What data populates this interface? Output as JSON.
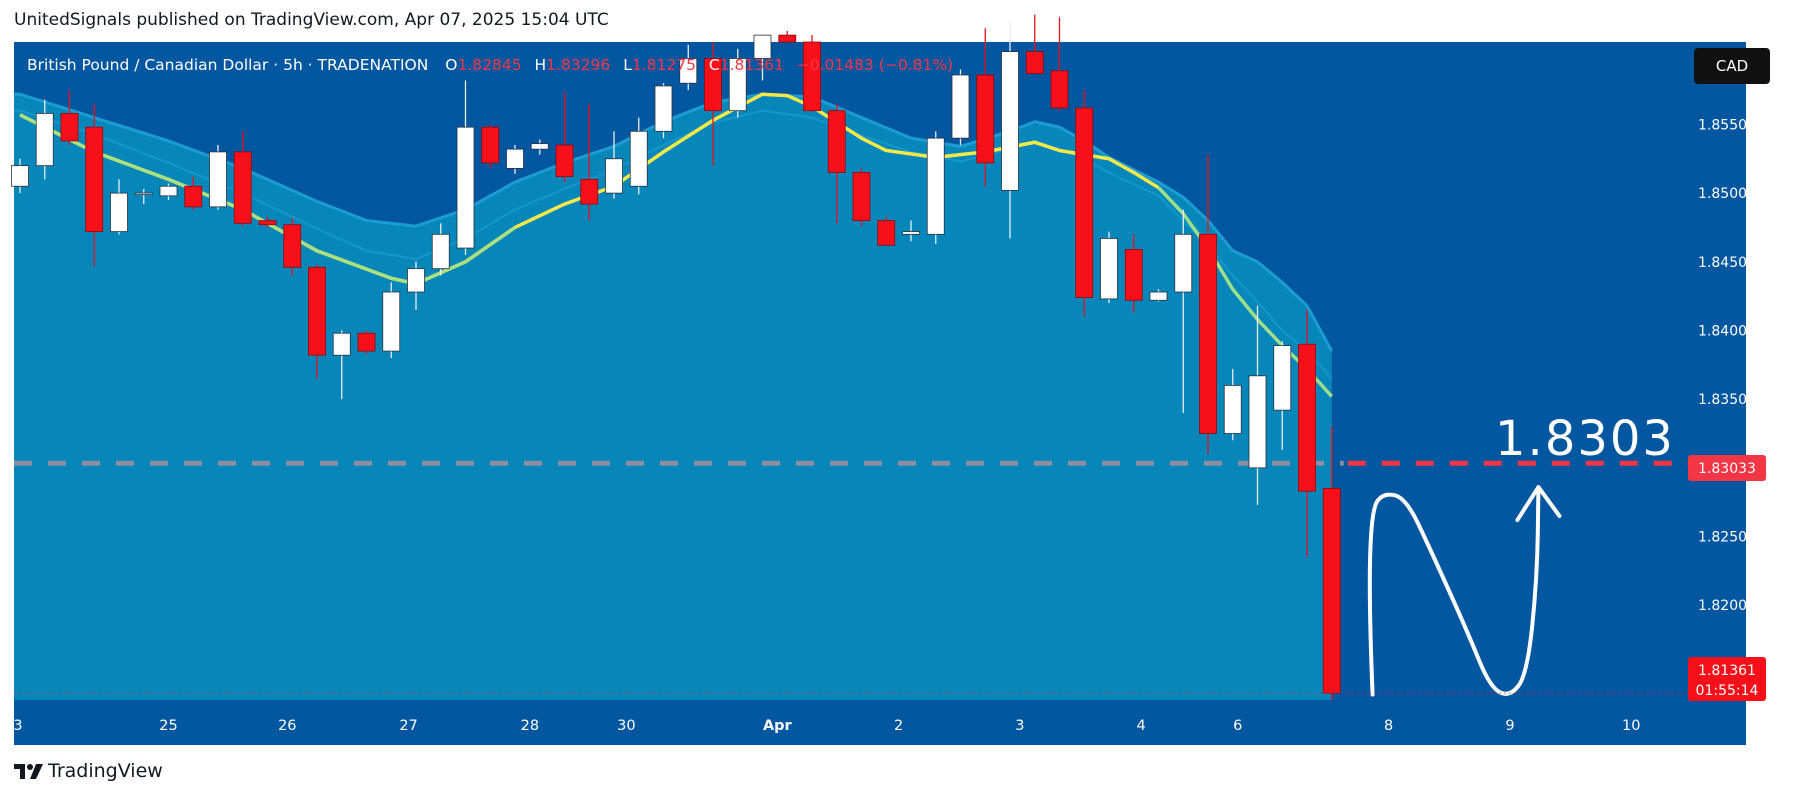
{
  "publish_line": "UnitedSignals published on TradingView.com, Apr 07, 2025 15:04 UTC",
  "brand": "TradingView",
  "legend": {
    "symbol": "British Pound / Canadian Dollar · 5h · TRADENATION",
    "o_label": "O",
    "o_value": "1.82845",
    "h_label": "H",
    "h_value": "1.83296",
    "l_label": "L",
    "l_value": "1.81275",
    "c_label": "C",
    "c_value": "1.81361",
    "change": "−0.01483 (−0.81%)"
  },
  "currency_button": "CAD",
  "price_tags": {
    "level": "1.83033",
    "last": "1.81361",
    "countdown": "01:55:14"
  },
  "annotation": "1.8303",
  "colors": {
    "background": "#0356A0",
    "band_fill": "#0786B9",
    "band_edge": "#1596CC",
    "up": "#FFFFFF",
    "down": "#F7101A",
    "ma_yellow": "#F5E94A",
    "ma_green": "#9CDE8A",
    "dashed_level": "#F23645",
    "dashed_level_band": "#8A8EA0",
    "legend_red": "#F23645",
    "axis_text": "#FFFFFF"
  },
  "chart_data": {
    "type": "candlestick",
    "symbol": "British Pound / Canadian Dollar",
    "timeframe": "5h",
    "exchange": "TRADENATION",
    "y_range": [
      1.8131,
      1.861
    ],
    "y_ticks": [
      "1.85500",
      "1.85000",
      "1.84500",
      "1.84000",
      "1.83500",
      "1.82500",
      "1.82000"
    ],
    "y_tick_values": [
      1.855,
      1.85,
      1.845,
      1.84,
      1.835,
      1.825,
      1.82
    ],
    "x_labels": [
      {
        "label": "3",
        "bar": -0.1
      },
      {
        "label": "25",
        "bar": 6.0
      },
      {
        "label": "26",
        "bar": 10.8
      },
      {
        "label": "27",
        "bar": 15.7
      },
      {
        "label": "28",
        "bar": 20.6
      },
      {
        "label": "30",
        "bar": 24.5
      },
      {
        "label": "Apr",
        "bar": 30.6
      },
      {
        "label": "2",
        "bar": 35.5
      },
      {
        "label": "3",
        "bar": 40.4
      },
      {
        "label": "4",
        "bar": 45.3
      },
      {
        "label": "6",
        "bar": 49.2
      },
      {
        "label": "8",
        "bar": 55.3
      },
      {
        "label": "9",
        "bar": 60.2
      },
      {
        "label": "10",
        "bar": 65.1
      }
    ],
    "candles": [
      {
        "o": 1.8505,
        "h": 1.8525,
        "l": 1.85,
        "c": 1.852
      },
      {
        "o": 1.852,
        "h": 1.8568,
        "l": 1.851,
        "c": 1.8558
      },
      {
        "o": 1.8558,
        "h": 1.8575,
        "l": 1.8535,
        "c": 1.8538
      },
      {
        "o": 1.8548,
        "h": 1.8565,
        "l": 1.8447,
        "c": 1.8472
      },
      {
        "o": 1.8472,
        "h": 1.851,
        "l": 1.847,
        "c": 1.85
      },
      {
        "o": 1.85,
        "h": 1.8503,
        "l": 1.8492,
        "c": 1.85
      },
      {
        "o": 1.8498,
        "h": 1.8507,
        "l": 1.8495,
        "c": 1.8505
      },
      {
        "o": 1.8505,
        "h": 1.8512,
        "l": 1.8488,
        "c": 1.849
      },
      {
        "o": 1.849,
        "h": 1.8535,
        "l": 1.8488,
        "c": 1.853
      },
      {
        "o": 1.853,
        "h": 1.8545,
        "l": 1.8476,
        "c": 1.8478
      },
      {
        "o": 1.848,
        "h": 1.8483,
        "l": 1.8475,
        "c": 1.8477
      },
      {
        "o": 1.8477,
        "h": 1.8482,
        "l": 1.844,
        "c": 1.8446
      },
      {
        "o": 1.8446,
        "h": 1.8448,
        "l": 1.8365,
        "c": 1.8382
      },
      {
        "o": 1.8382,
        "h": 1.84,
        "l": 1.835,
        "c": 1.8398
      },
      {
        "o": 1.8398,
        "h": 1.84,
        "l": 1.8383,
        "c": 1.8385
      },
      {
        "o": 1.8385,
        "h": 1.8435,
        "l": 1.838,
        "c": 1.8428
      },
      {
        "o": 1.8428,
        "h": 1.845,
        "l": 1.8415,
        "c": 1.8445
      },
      {
        "o": 1.8445,
        "h": 1.8478,
        "l": 1.844,
        "c": 1.847
      },
      {
        "o": 1.846,
        "h": 1.8582,
        "l": 1.8455,
        "c": 1.8548
      },
      {
        "o": 1.8548,
        "h": 1.855,
        "l": 1.8518,
        "c": 1.8522
      },
      {
        "o": 1.8518,
        "h": 1.8535,
        "l": 1.8514,
        "c": 1.8532
      },
      {
        "o": 1.8532,
        "h": 1.8539,
        "l": 1.8528,
        "c": 1.8536
      },
      {
        "o": 1.8535,
        "h": 1.8573,
        "l": 1.8508,
        "c": 1.8512
      },
      {
        "o": 1.851,
        "h": 1.8565,
        "l": 1.848,
        "c": 1.8492
      },
      {
        "o": 1.85,
        "h": 1.8545,
        "l": 1.8496,
        "c": 1.8525
      },
      {
        "o": 1.8505,
        "h": 1.8555,
        "l": 1.8499,
        "c": 1.8545
      },
      {
        "o": 1.8545,
        "h": 1.858,
        "l": 1.854,
        "c": 1.8578
      },
      {
        "o": 1.858,
        "h": 1.8608,
        "l": 1.8575,
        "c": 1.8598
      },
      {
        "o": 1.8598,
        "h": 1.861,
        "l": 1.852,
        "c": 1.856
      },
      {
        "o": 1.856,
        "h": 1.8605,
        "l": 1.8555,
        "c": 1.8598
      },
      {
        "o": 1.8598,
        "h": 1.8615,
        "l": 1.8582,
        "c": 1.8615
      },
      {
        "o": 1.8615,
        "h": 1.8618,
        "l": 1.861,
        "c": 1.861
      },
      {
        "o": 1.861,
        "h": 1.8615,
        "l": 1.8559,
        "c": 1.856
      },
      {
        "o": 1.856,
        "h": 1.8565,
        "l": 1.8478,
        "c": 1.8515
      },
      {
        "o": 1.8515,
        "h": 1.8518,
        "l": 1.8476,
        "c": 1.848
      },
      {
        "o": 1.848,
        "h": 1.8483,
        "l": 1.8462,
        "c": 1.8462
      },
      {
        "o": 1.847,
        "h": 1.848,
        "l": 1.8465,
        "c": 1.8472
      },
      {
        "o": 1.847,
        "h": 1.8545,
        "l": 1.8463,
        "c": 1.854
      },
      {
        "o": 1.854,
        "h": 1.859,
        "l": 1.8535,
        "c": 1.8586
      },
      {
        "o": 1.8586,
        "h": 1.862,
        "l": 1.8505,
        "c": 1.8522
      },
      {
        "o": 1.8502,
        "h": 1.8625,
        "l": 1.8467,
        "c": 1.8603
      },
      {
        "o": 1.8603,
        "h": 1.863,
        "l": 1.8587,
        "c": 1.8587
      },
      {
        "o": 1.8589,
        "h": 1.8628,
        "l": 1.856,
        "c": 1.8562
      },
      {
        "o": 1.8562,
        "h": 1.8575,
        "l": 1.841,
        "c": 1.8424
      },
      {
        "o": 1.8423,
        "h": 1.8472,
        "l": 1.842,
        "c": 1.8467
      },
      {
        "o": 1.8459,
        "h": 1.847,
        "l": 1.8413,
        "c": 1.8422
      },
      {
        "o": 1.8422,
        "h": 1.843,
        "l": 1.8421,
        "c": 1.8428
      },
      {
        "o": 1.8428,
        "h": 1.8488,
        "l": 1.834,
        "c": 1.847
      },
      {
        "o": 1.847,
        "h": 1.8528,
        "l": 1.831,
        "c": 1.8325
      },
      {
        "o": 1.8325,
        "h": 1.8372,
        "l": 1.832,
        "c": 1.836
      },
      {
        "o": 1.83,
        "h": 1.8418,
        "l": 1.8273,
        "c": 1.8367
      },
      {
        "o": 1.8342,
        "h": 1.8392,
        "l": 1.8313,
        "c": 1.8389
      },
      {
        "o": 1.839,
        "h": 1.8415,
        "l": 1.8235,
        "c": 1.8283
      },
      {
        "o": 1.8285,
        "h": 1.833,
        "l": 1.8128,
        "c": 1.8136
      }
    ],
    "ma_yellow": [
      [
        0,
        1.8557
      ],
      [
        3,
        1.853
      ],
      [
        6,
        1.851
      ],
      [
        9,
        1.8488
      ],
      [
        12,
        1.8458
      ],
      [
        15,
        1.8438
      ],
      [
        16,
        1.8434
      ],
      [
        18,
        1.845
      ],
      [
        20,
        1.8475
      ],
      [
        22,
        1.8492
      ],
      [
        24,
        1.8505
      ],
      [
        26,
        1.853
      ],
      [
        28,
        1.8553
      ],
      [
        30,
        1.8572
      ],
      [
        31,
        1.8571
      ],
      [
        32,
        1.8563
      ],
      [
        34,
        1.854
      ],
      [
        35,
        1.8531
      ],
      [
        37,
        1.8526
      ],
      [
        39,
        1.853
      ],
      [
        41,
        1.8537
      ],
      [
        42,
        1.8531
      ],
      [
        44,
        1.8525
      ],
      [
        45,
        1.8515
      ],
      [
        46,
        1.8504
      ]
    ],
    "ma_green": [
      [
        46,
        1.8504
      ],
      [
        47,
        1.8485
      ],
      [
        48,
        1.846
      ],
      [
        49,
        1.843
      ],
      [
        50,
        1.8408
      ],
      [
        51,
        1.8389
      ],
      [
        52,
        1.8372
      ],
      [
        53,
        1.8352
      ]
    ],
    "band_upper": [
      [
        0,
        1.8572
      ],
      [
        3,
        1.8555
      ],
      [
        6,
        1.8538
      ],
      [
        9,
        1.8518
      ],
      [
        12,
        1.8494
      ],
      [
        14,
        1.848
      ],
      [
        16,
        1.8476
      ],
      [
        18,
        1.8488
      ],
      [
        20,
        1.8508
      ],
      [
        22,
        1.8522
      ],
      [
        24,
        1.8534
      ],
      [
        26,
        1.8552
      ],
      [
        28,
        1.8566
      ],
      [
        30,
        1.8572
      ],
      [
        32,
        1.857
      ],
      [
        34,
        1.8555
      ],
      [
        36,
        1.854
      ],
      [
        38,
        1.8534
      ],
      [
        40,
        1.8545
      ],
      [
        41,
        1.8552
      ],
      [
        42,
        1.8548
      ],
      [
        43,
        1.8538
      ],
      [
        44,
        1.8526
      ],
      [
        46,
        1.8508
      ],
      [
        47,
        1.8497
      ],
      [
        48,
        1.848
      ],
      [
        49,
        1.8458
      ],
      [
        50,
        1.845
      ],
      [
        51,
        1.8435
      ],
      [
        52,
        1.8418
      ],
      [
        53,
        1.8385
      ]
    ],
    "band_lower": [
      [
        0,
        1.856
      ],
      [
        3,
        1.8543
      ],
      [
        6,
        1.8522
      ],
      [
        9,
        1.85
      ],
      [
        12,
        1.8474
      ],
      [
        14,
        1.8458
      ],
      [
        16,
        1.8452
      ],
      [
        18,
        1.8467
      ],
      [
        20,
        1.8488
      ],
      [
        22,
        1.8503
      ],
      [
        24,
        1.8517
      ],
      [
        26,
        1.8535
      ],
      [
        28,
        1.8551
      ],
      [
        30,
        1.856
      ],
      [
        32,
        1.8555
      ],
      [
        34,
        1.8542
      ],
      [
        36,
        1.853
      ],
      [
        38,
        1.8523
      ],
      [
        40,
        1.8532
      ],
      [
        41,
        1.8538
      ],
      [
        42,
        1.8532
      ],
      [
        43,
        1.8525
      ],
      [
        44,
        1.8515
      ],
      [
        46,
        1.8498
      ],
      [
        47,
        1.848
      ],
      [
        48,
        1.8462
      ],
      [
        49,
        1.844
      ],
      [
        50,
        1.8421
      ],
      [
        51,
        1.84
      ],
      [
        52,
        1.8385
      ],
      [
        53,
        1.8365
      ]
    ],
    "horizontal_level": 1.83033,
    "drawing": "hand-drawn white path: down to 1.8135 then up toward 1.8303 with arrow head",
    "drawing_path": [
      [
        54.65,
        1.8135
      ],
      [
        54.5,
        1.82
      ],
      [
        54.6,
        1.827
      ],
      [
        55.1,
        1.8282
      ],
      [
        56.0,
        1.8278
      ],
      [
        57.0,
        1.824
      ],
      [
        58.5,
        1.818
      ],
      [
        59.4,
        1.814
      ],
      [
        60.2,
        1.8133
      ],
      [
        60.9,
        1.815
      ],
      [
        61.3,
        1.822
      ],
      [
        61.35,
        1.8285
      ]
    ],
    "arrow_head": [
      [
        60.5,
        1.8262
      ],
      [
        61.35,
        1.8286
      ],
      [
        62.2,
        1.8265
      ]
    ]
  }
}
